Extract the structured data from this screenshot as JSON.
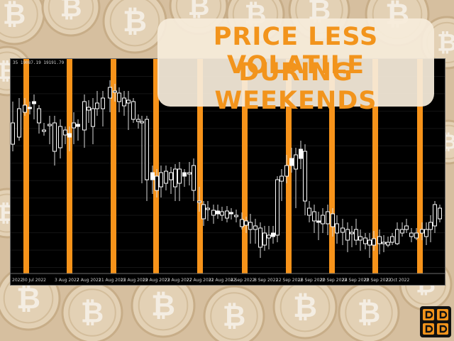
{
  "title": {
    "line1": "PRICE LESS VOLATILE",
    "line2": "DURING WEEKENDS"
  },
  "chart": {
    "ohlc_readout": "35 19087.19 19191.79",
    "x_tick_labels": [
      "2022",
      "30 Jul 2022",
      "3 Aug 2022",
      "7 Aug 2022",
      "11 Aug 2022",
      "15 Aug 2022",
      "19 Aug 2022",
      "23 Aug 2022",
      "27 Aug 2022",
      "31 Aug 2022",
      "4 Sep 2022",
      "8 Sep 2022",
      "12 Sep 2022",
      "16 Sep 2022",
      "20 Sep 2022",
      "24 Sep 2022",
      "28 Sep 2022",
      "2 Oct 2022"
    ],
    "background": "#000000",
    "weekend_highlight_color": "#f7931a",
    "candle_color": "#ffffff"
  },
  "colors": {
    "title_text": "#f2941c",
    "title_box": "#f6ecda",
    "coin": "#e2cfb3"
  },
  "icons": {
    "background": "bitcoin-coin-icon",
    "logo": "brand-logo-icon"
  }
}
